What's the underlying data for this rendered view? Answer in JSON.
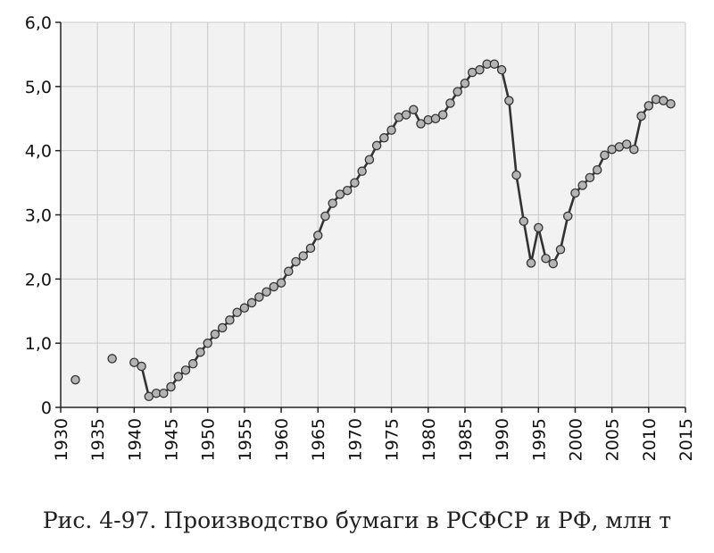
{
  "caption": "Рис. 4-97. Производство бумаги в РСФСР и РФ, млн т",
  "chart_data": {
    "type": "line",
    "title": "",
    "xlabel": "",
    "ylabel": "",
    "xlim": [
      1930,
      2015
    ],
    "ylim": [
      0,
      6
    ],
    "grid": true,
    "x_ticks": [
      1930,
      1935,
      1940,
      1945,
      1950,
      1955,
      1960,
      1965,
      1970,
      1975,
      1980,
      1985,
      1990,
      1995,
      2000,
      2005,
      2010,
      2015
    ],
    "y_ticks": [
      "0",
      "1,0",
      "2,0",
      "3,0",
      "4,0",
      "5,0",
      "6,0"
    ],
    "y_tick_values": [
      0,
      1,
      2,
      3,
      4,
      5,
      6
    ],
    "colors": {
      "line": "#333333",
      "marker_fill": "#b4b4b4",
      "marker_edge": "#333333",
      "plot_bg": "#f2f2f2",
      "grid": "#c8c8c8"
    },
    "series": [
      {
        "points": [
          [
            1932,
            0.43
          ],
          [
            1937,
            0.76
          ],
          [
            1940,
            0.7
          ],
          [
            1941,
            0.64
          ],
          [
            1942,
            0.17
          ],
          [
            1943,
            0.22
          ],
          [
            1944,
            0.22
          ],
          [
            1945,
            0.32
          ],
          [
            1946,
            0.48
          ],
          [
            1947,
            0.58
          ],
          [
            1948,
            0.68
          ],
          [
            1949,
            0.86
          ],
          [
            1950,
            1.0
          ],
          [
            1951,
            1.14
          ],
          [
            1952,
            1.24
          ],
          [
            1953,
            1.36
          ],
          [
            1954,
            1.48
          ],
          [
            1955,
            1.55
          ],
          [
            1956,
            1.63
          ],
          [
            1957,
            1.72
          ],
          [
            1958,
            1.8
          ],
          [
            1959,
            1.88
          ],
          [
            1960,
            1.94
          ],
          [
            1961,
            2.12
          ],
          [
            1962,
            2.27
          ],
          [
            1963,
            2.36
          ],
          [
            1964,
            2.48
          ],
          [
            1965,
            2.68
          ],
          [
            1966,
            2.98
          ],
          [
            1967,
            3.18
          ],
          [
            1968,
            3.32
          ],
          [
            1969,
            3.38
          ],
          [
            1970,
            3.5
          ],
          [
            1971,
            3.68
          ],
          [
            1972,
            3.86
          ],
          [
            1973,
            4.08
          ],
          [
            1974,
            4.2
          ],
          [
            1975,
            4.32
          ],
          [
            1976,
            4.52
          ],
          [
            1977,
            4.56
          ],
          [
            1978,
            4.64
          ],
          [
            1979,
            4.42
          ],
          [
            1980,
            4.48
          ],
          [
            1981,
            4.5
          ],
          [
            1982,
            4.56
          ],
          [
            1983,
            4.74
          ],
          [
            1984,
            4.92
          ],
          [
            1985,
            5.05
          ],
          [
            1986,
            5.22
          ],
          [
            1987,
            5.26
          ],
          [
            1988,
            5.35
          ],
          [
            1989,
            5.35
          ],
          [
            1990,
            5.26
          ],
          [
            1991,
            4.78
          ],
          [
            1992,
            3.62
          ],
          [
            1993,
            2.9
          ],
          [
            1994,
            2.25
          ],
          [
            1995,
            2.8
          ],
          [
            1996,
            2.32
          ],
          [
            1997,
            2.24
          ],
          [
            1998,
            2.46
          ],
          [
            1999,
            2.98
          ],
          [
            2000,
            3.34
          ],
          [
            2001,
            3.46
          ],
          [
            2002,
            3.58
          ],
          [
            2003,
            3.7
          ],
          [
            2004,
            3.93
          ],
          [
            2005,
            4.02
          ],
          [
            2006,
            4.06
          ],
          [
            2007,
            4.1
          ],
          [
            2008,
            4.02
          ],
          [
            2009,
            4.54
          ],
          [
            2010,
            4.7
          ],
          [
            2011,
            4.8
          ],
          [
            2012,
            4.78
          ],
          [
            2013,
            4.73
          ]
        ],
        "line_from_year": 1940
      }
    ]
  }
}
